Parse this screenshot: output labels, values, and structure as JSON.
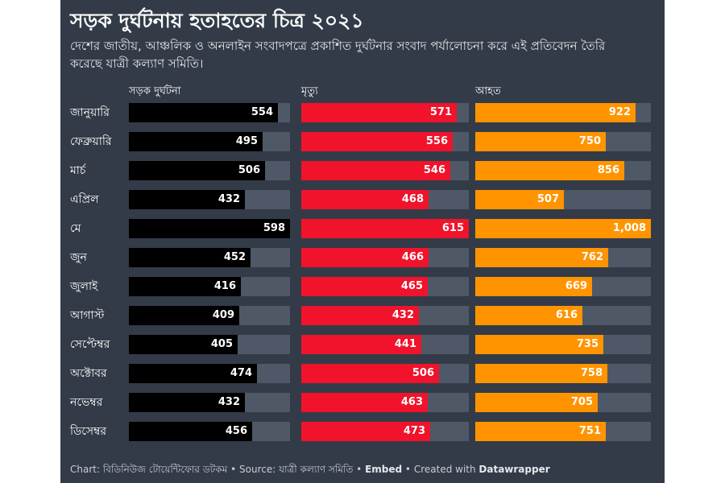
{
  "header": {
    "title": "সড়ক দুর্ঘটনায় হতাহতের চিত্র ২০২১",
    "subtitle": "দেশের জাতীয়, আঞ্চলিক ও অনলাইন সংবাদপত্রে প্রকাশিত দুর্ঘটনার সংবাদ পর্যালোচনা করে এই প্রতিবেদন তৈরি করেছে যাত্রী কল্যাণ সমিতি।"
  },
  "footer": {
    "chart_label": "Chart: বিডিনিউজ টোয়েন্টিফোর ডটকম",
    "sep1": " • ",
    "source_label": "Source: যাত্রী কল্যাণ সমিতি",
    "sep2": " • ",
    "embed_label": "Embed",
    "sep3": " • ",
    "created_label": "Created with ",
    "datawrapper_label": "Datawrapper"
  },
  "colors": {
    "background": "#333b48",
    "track": "#4f5866",
    "accidents": "#000000",
    "deaths": "#f0132b",
    "injured": "#ff9400"
  },
  "chart_data": {
    "type": "bar",
    "categories": [
      "জানুয়ারি",
      "ফেব্রুয়ারি",
      "মার্চ",
      "এপ্রিল",
      "মে",
      "জুন",
      "জুলাই",
      "আগাস্ট",
      "সেপ্টেম্বর",
      "অক্টোবর",
      "নভেম্বর",
      "ডিসেম্বর"
    ],
    "series": [
      {
        "name": "সড়ক দুর্ঘটনা",
        "values": [
          554,
          495,
          506,
          432,
          598,
          452,
          416,
          409,
          405,
          474,
          432,
          456
        ],
        "labels": [
          "554",
          "495",
          "506",
          "432",
          "598",
          "452",
          "416",
          "409",
          "405",
          "474",
          "432",
          "456"
        ],
        "color": "#000000"
      },
      {
        "name": "মৃত্যু",
        "values": [
          571,
          556,
          546,
          468,
          615,
          466,
          465,
          432,
          441,
          506,
          463,
          473
        ],
        "labels": [
          "571",
          "556",
          "546",
          "468",
          "615",
          "466",
          "465",
          "432",
          "441",
          "506",
          "463",
          "473"
        ],
        "color": "#f0132b"
      },
      {
        "name": "আহত",
        "values": [
          922,
          750,
          856,
          507,
          1008,
          762,
          669,
          616,
          735,
          758,
          705,
          751
        ],
        "labels": [
          "922",
          "750",
          "856",
          "507",
          "1,008",
          "762",
          "669",
          "616",
          "735",
          "758",
          "705",
          "751"
        ],
        "color": "#ff9400"
      }
    ]
  }
}
